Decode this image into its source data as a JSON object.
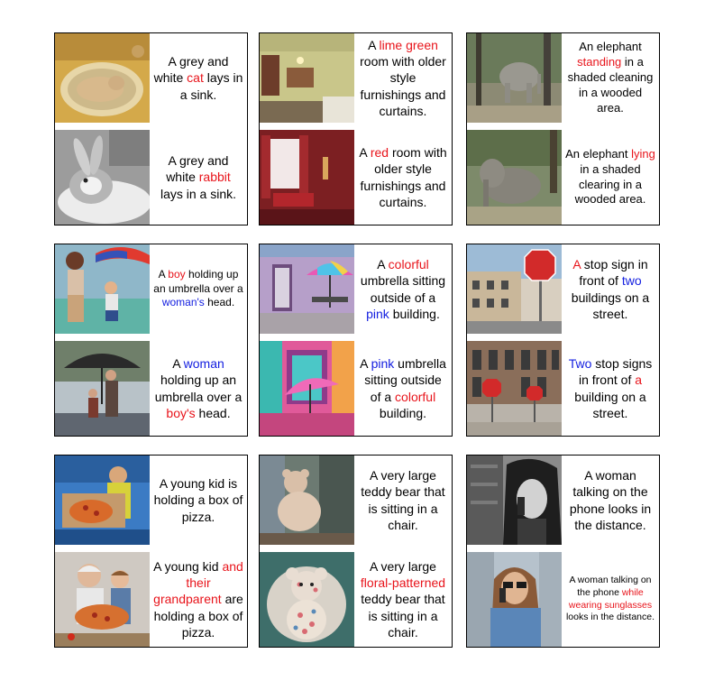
{
  "panels": [
    {
      "top": {
        "image": "cat-in-sink-photo",
        "caption": [
          {
            "t": "A grey and white ",
            "c": ""
          },
          {
            "t": "cat",
            "c": "r"
          },
          {
            "t": " lays in a sink.",
            "c": ""
          }
        ]
      },
      "bottom": {
        "image": "rabbit-in-sink-photo",
        "caption": [
          {
            "t": "A grey and white ",
            "c": ""
          },
          {
            "t": "rabbit",
            "c": "r"
          },
          {
            "t": " lays in a sink.",
            "c": ""
          }
        ]
      }
    },
    {
      "top": {
        "image": "lime-green-room-photo",
        "caption": [
          {
            "t": "A ",
            "c": ""
          },
          {
            "t": "lime green",
            "c": "r"
          },
          {
            "t": " room with older style furnishings and curtains.",
            "c": ""
          }
        ]
      },
      "bottom": {
        "image": "red-room-photo",
        "caption": [
          {
            "t": "A ",
            "c": ""
          },
          {
            "t": "red",
            "c": "r"
          },
          {
            "t": " room with older style furnishings and curtains.",
            "c": ""
          }
        ]
      }
    },
    {
      "top": {
        "image": "standing-elephant-photo",
        "caption": [
          {
            "t": "An elephant ",
            "c": ""
          },
          {
            "t": "standing",
            "c": "r"
          },
          {
            "t": " in a shaded cleaning in a wooded area.",
            "c": ""
          }
        ]
      },
      "bottom": {
        "image": "lying-elephant-photo",
        "caption": [
          {
            "t": "An elephant ",
            "c": ""
          },
          {
            "t": "lying",
            "c": "r"
          },
          {
            "t": " in a shaded clearing in a wooded area.",
            "c": ""
          }
        ]
      }
    },
    {
      "top": {
        "image": "boy-umbrella-woman-photo",
        "caption": [
          {
            "t": "A ",
            "c": ""
          },
          {
            "t": "boy",
            "c": "r"
          },
          {
            "t": " holding up an umbrella over a ",
            "c": ""
          },
          {
            "t": "woman's",
            "c": "b"
          },
          {
            "t": " head.",
            "c": ""
          }
        ]
      },
      "bottom": {
        "image": "woman-umbrella-boy-photo",
        "caption": [
          {
            "t": "A ",
            "c": ""
          },
          {
            "t": "woman",
            "c": "b"
          },
          {
            "t": " holding up an umbrella over a ",
            "c": ""
          },
          {
            "t": "boy's",
            "c": "r"
          },
          {
            "t": " head.",
            "c": ""
          }
        ]
      }
    },
    {
      "top": {
        "image": "colorful-umbrella-pink-building-photo",
        "caption": [
          {
            "t": "A ",
            "c": ""
          },
          {
            "t": "colorful",
            "c": "r"
          },
          {
            "t": " umbrella sitting outside of a ",
            "c": ""
          },
          {
            "t": "pink",
            "c": "b"
          },
          {
            "t": " building.",
            "c": ""
          }
        ]
      },
      "bottom": {
        "image": "pink-umbrella-colorful-building-photo",
        "caption": [
          {
            "t": "A ",
            "c": ""
          },
          {
            "t": "pink",
            "c": "b"
          },
          {
            "t": " umbrella sitting outside of a ",
            "c": ""
          },
          {
            "t": "colorful",
            "c": "r"
          },
          {
            "t": " building.",
            "c": ""
          }
        ]
      }
    },
    {
      "top": {
        "image": "one-stop-sign-two-buildings-photo",
        "caption": [
          {
            "t": "A",
            "c": "r"
          },
          {
            "t": " stop sign in front of ",
            "c": ""
          },
          {
            "t": "two",
            "c": "b"
          },
          {
            "t": " buildings on a street.",
            "c": ""
          }
        ]
      },
      "bottom": {
        "image": "two-stop-signs-one-building-photo",
        "caption": [
          {
            "t": "Two",
            "c": "b"
          },
          {
            "t": " stop signs in front of ",
            "c": ""
          },
          {
            "t": "a",
            "c": "r"
          },
          {
            "t": " building on a street.",
            "c": ""
          }
        ]
      }
    },
    {
      "top": {
        "image": "kid-with-pizza-box-photo",
        "caption": [
          {
            "t": "A young kid is holding a box of pizza.",
            "c": ""
          }
        ]
      },
      "bottom": {
        "image": "kid-and-grandparent-pizza-photo",
        "caption": [
          {
            "t": "A young kid ",
            "c": ""
          },
          {
            "t": "and their grandparent",
            "c": "r"
          },
          {
            "t": " are holding a box of pizza.",
            "c": ""
          }
        ]
      }
    },
    {
      "top": {
        "image": "teddy-bear-in-chair-photo",
        "caption": [
          {
            "t": "A very large teddy bear that is sitting in a chair.",
            "c": ""
          }
        ]
      },
      "bottom": {
        "image": "floral-teddy-bear-photo",
        "caption": [
          {
            "t": "A very large ",
            "c": ""
          },
          {
            "t": "floral-patterned",
            "c": "r"
          },
          {
            "t": " teddy bear that is sitting in a chair.",
            "c": ""
          }
        ]
      }
    },
    {
      "top": {
        "image": "woman-on-phone-bw-photo",
        "caption": [
          {
            "t": "A woman talking on the phone looks in the distance.",
            "c": ""
          }
        ]
      },
      "bottom": {
        "image": "woman-phone-sunglasses-photo",
        "caption": [
          {
            "t": "A woman talking on the phone ",
            "c": ""
          },
          {
            "t": "while wearing sunglasses",
            "c": "r"
          },
          {
            "t": " looks in the distance.",
            "c": ""
          }
        ]
      }
    }
  ]
}
